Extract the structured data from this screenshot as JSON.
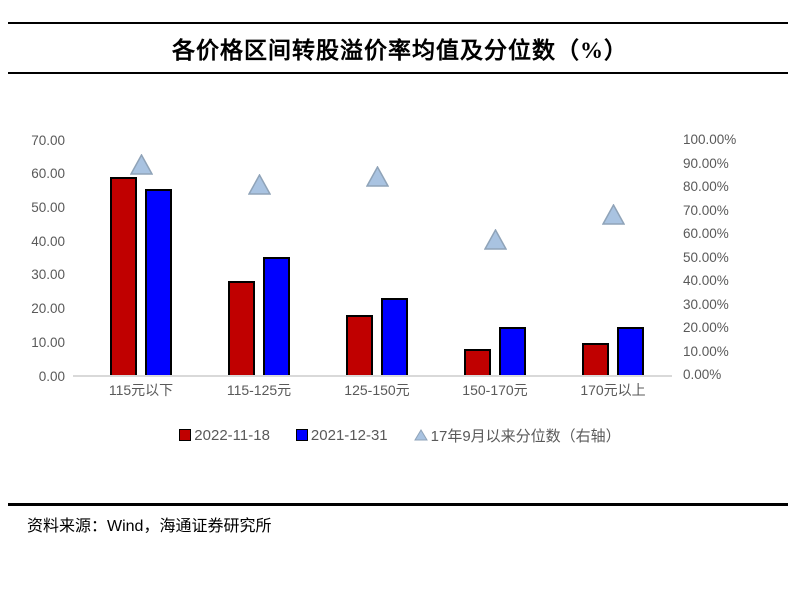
{
  "header": {
    "title": "各价格区间转股溢价率均值及分位数（%）"
  },
  "footer": {
    "source": "资料来源：Wind，海通证券研究所"
  },
  "chart_data": {
    "type": "bar",
    "title": "各价格区间转股溢价率均值及分位数（%）",
    "categories": [
      "115元以下",
      "115-125元",
      "125-150元",
      "150-170元",
      "170元以上"
    ],
    "series": [
      {
        "name": "2022-11-18",
        "type": "bar",
        "axis": "left",
        "color": "#c00000",
        "values": [
          58.6,
          27.9,
          17.7,
          7.8,
          9.4
        ]
      },
      {
        "name": "2021-12-31",
        "type": "bar",
        "axis": "left",
        "color": "#0000ff",
        "values": [
          55.1,
          34.9,
          22.8,
          14.2,
          14.2
        ]
      },
      {
        "name": "17年9月以来分位数（右轴）",
        "type": "scatter",
        "marker": "triangle",
        "axis": "right",
        "color": "#a9c3e1",
        "marker_stroke": "#8fa3b8",
        "values": [
          89.5,
          81.0,
          84.5,
          57.5,
          68.5
        ]
      }
    ],
    "left_axis": {
      "min": 0,
      "max": 70,
      "ticks": [
        "70.00",
        "60.00",
        "50.00",
        "40.00",
        "30.00",
        "20.00",
        "10.00",
        "0.00"
      ]
    },
    "right_axis": {
      "min": 0,
      "max": 100,
      "unit": "%",
      "ticks": [
        "100.00%",
        "90.00%",
        "80.00%",
        "70.00%",
        "60.00%",
        "50.00%",
        "40.00%",
        "30.00%",
        "20.00%",
        "10.00%",
        "0.00%"
      ]
    },
    "grid": "off",
    "legend_position": "bottom"
  },
  "colors": {
    "bar_red": "#c00000",
    "bar_blue": "#0000ff",
    "triangle_fill": "#a9c3e1",
    "triangle_stroke": "#8fa3b8",
    "axis_text": "#595959",
    "axis_line": "#d9d9d9",
    "rule": "#000000"
  }
}
